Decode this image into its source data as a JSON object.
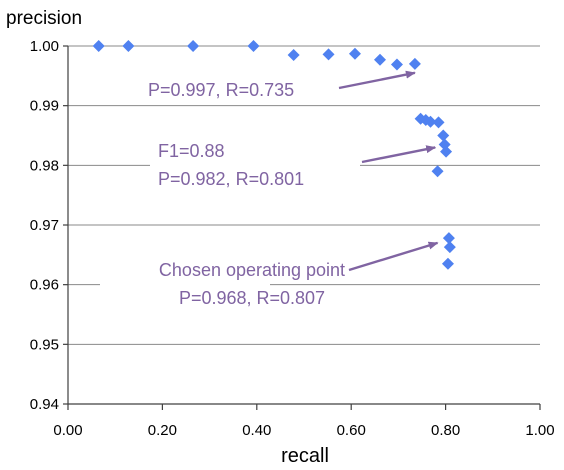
{
  "chart_data": {
    "type": "scatter",
    "title": "",
    "xlabel": "recall",
    "ylabel": "precision",
    "xlim": [
      0.0,
      1.0
    ],
    "ylim": [
      0.94,
      1.0
    ],
    "x_ticks": [
      "0.00",
      "0.20",
      "0.40",
      "0.60",
      "0.80",
      "1.00"
    ],
    "y_ticks": [
      "1.00",
      "0.99",
      "0.98",
      "0.97",
      "0.96",
      "0.95",
      "0.94"
    ],
    "grid": "horizontal",
    "marker": "diamond",
    "marker_color": "#4f81f0",
    "annotation_color": "#8064a2",
    "points": [
      {
        "x": 0.065,
        "y": 1.0
      },
      {
        "x": 0.128,
        "y": 1.0
      },
      {
        "x": 0.265,
        "y": 1.0
      },
      {
        "x": 0.393,
        "y": 1.0
      },
      {
        "x": 0.478,
        "y": 0.9985
      },
      {
        "x": 0.552,
        "y": 0.9986
      },
      {
        "x": 0.608,
        "y": 0.9987
      },
      {
        "x": 0.661,
        "y": 0.9977
      },
      {
        "x": 0.697,
        "y": 0.9969
      },
      {
        "x": 0.735,
        "y": 0.997
      },
      {
        "x": 0.747,
        "y": 0.9878
      },
      {
        "x": 0.758,
        "y": 0.9876
      },
      {
        "x": 0.768,
        "y": 0.9873
      },
      {
        "x": 0.785,
        "y": 0.9872
      },
      {
        "x": 0.795,
        "y": 0.985
      },
      {
        "x": 0.798,
        "y": 0.9835
      },
      {
        "x": 0.801,
        "y": 0.9823
      },
      {
        "x": 0.783,
        "y": 0.979
      },
      {
        "x": 0.807,
        "y": 0.9678
      },
      {
        "x": 0.809,
        "y": 0.9663
      },
      {
        "x": 0.805,
        "y": 0.9635
      }
    ],
    "annotations": [
      {
        "lines": [
          "P=0.997, R=0.735"
        ],
        "target": {
          "x": 0.735,
          "y": 0.9955
        }
      },
      {
        "lines": [
          "F1=0.88",
          "P=0.982, R=0.801"
        ],
        "target": {
          "x": 0.778,
          "y": 0.983
        }
      },
      {
        "lines": [
          "Chosen operating point",
          "P=0.968, R=0.807"
        ],
        "target": {
          "x": 0.783,
          "y": 0.967
        }
      }
    ]
  }
}
